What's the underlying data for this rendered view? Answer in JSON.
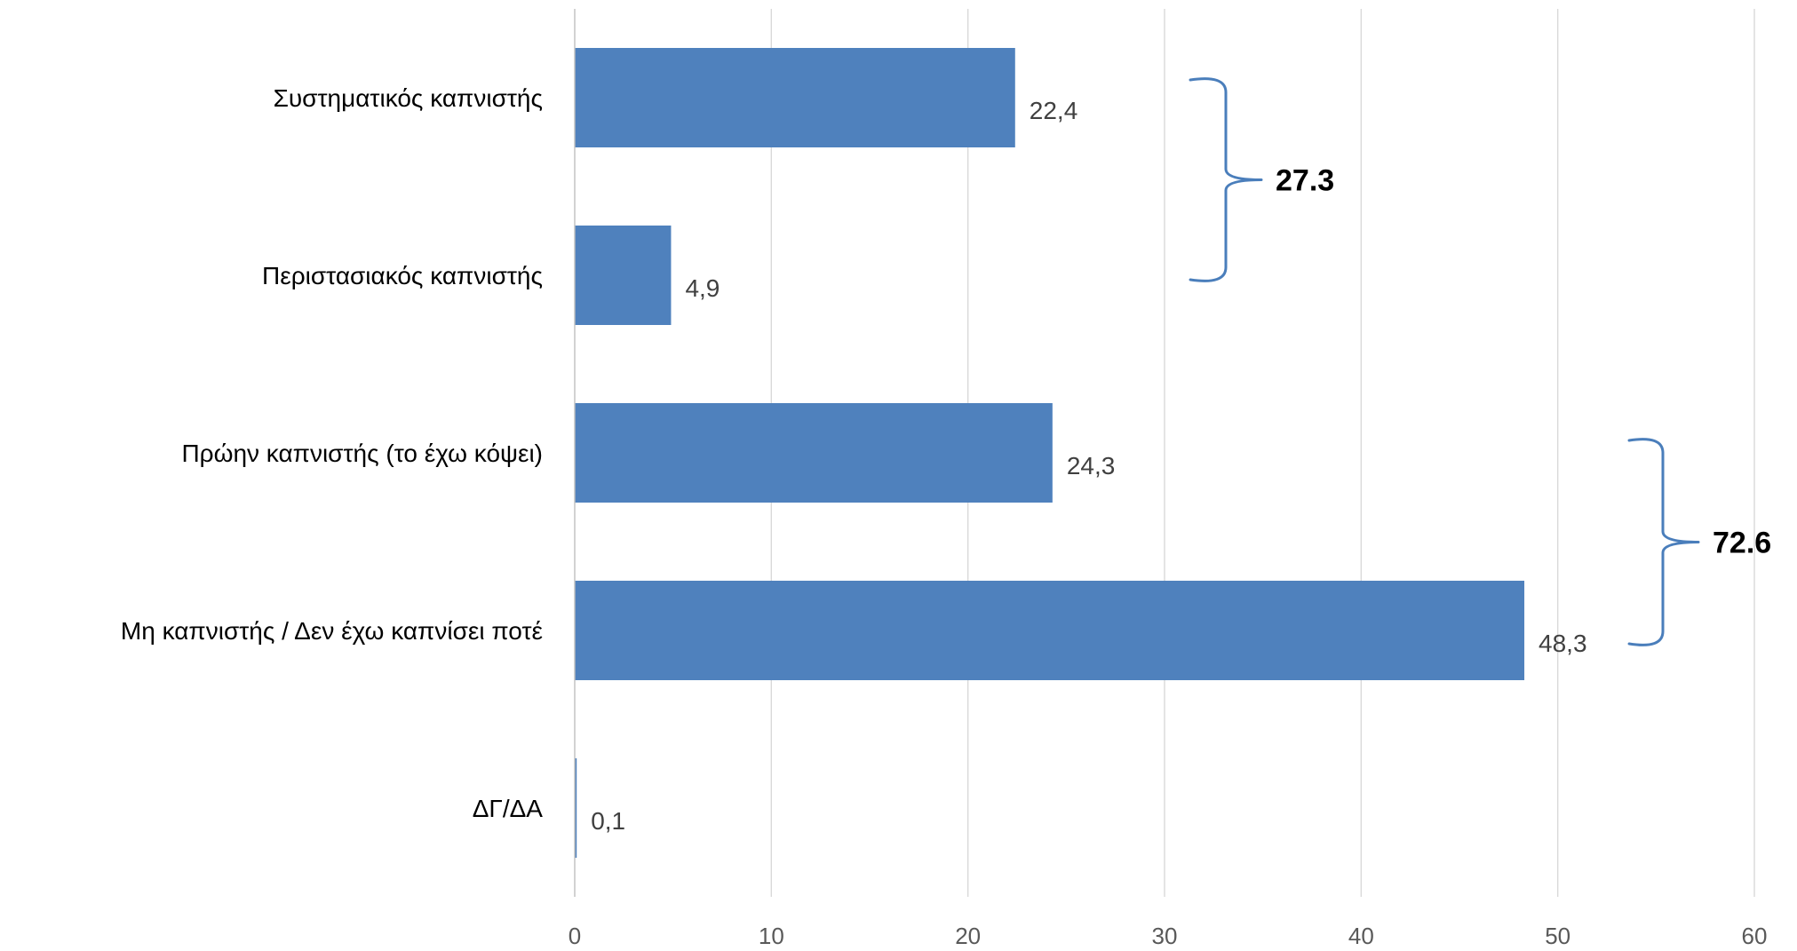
{
  "chart_data": {
    "type": "bar",
    "orientation": "horizontal",
    "categories": [
      "Συστηματικός καπνιστής",
      "Περιστασιακός καπνιστής",
      "Πρώην καπνιστής (το έχω κόψει)",
      "Μη καπνιστής / Δεν έχω καπνίσει ποτέ",
      "ΔΓ/ΔΑ"
    ],
    "values": [
      22.4,
      4.9,
      24.3,
      48.3,
      0.1
    ],
    "data_labels": [
      "22,4",
      "4,9",
      "24,3",
      "48,3",
      "0,1"
    ],
    "xlim": [
      0,
      60
    ],
    "x_ticks": [
      0,
      10,
      20,
      30,
      40,
      50,
      60
    ],
    "x_tick_labels": [
      "0",
      "10",
      "20",
      "30",
      "40",
      "50",
      "60"
    ],
    "grid": "vertical",
    "bar_color": "#4f81bd",
    "brace_color": "#4a7ebb",
    "groups": [
      {
        "from": 0,
        "to": 1,
        "total_label": "27.3"
      },
      {
        "from": 2,
        "to": 3,
        "total_label": "72.6"
      }
    ]
  }
}
